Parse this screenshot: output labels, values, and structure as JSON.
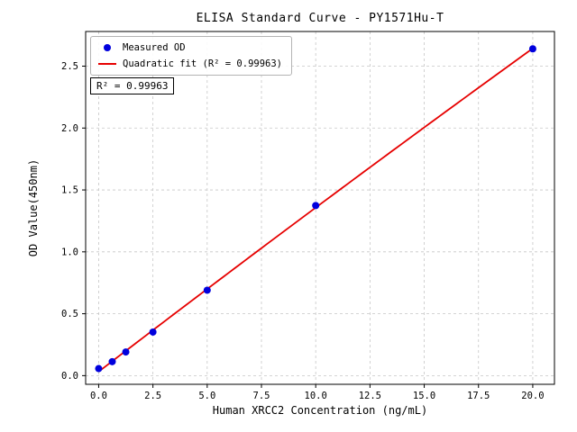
{
  "chart_data": {
    "type": "scatter",
    "title": "ELISA Standard Curve - PY1571Hu-T",
    "xlabel": "Human XRCC2 Concentration (ng/mL)",
    "ylabel": "OD Value(450nm)",
    "annotation": "R² = 0.99963",
    "r_squared": 0.99963,
    "x": [
      0,
      0.625,
      1.25,
      2.5,
      5,
      10,
      20
    ],
    "y": [
      0.057,
      0.113,
      0.191,
      0.352,
      0.69,
      1.374,
      2.64
    ],
    "series": [
      {
        "name": "Measured OD",
        "type": "scatter",
        "color": "#0000dd"
      },
      {
        "name": "Quadratic fit (R² = 0.99963)",
        "type": "quadratic_fit",
        "color": "#e60000"
      }
    ],
    "xlim": [
      -0.6,
      21.0
    ],
    "ylim": [
      -0.07,
      2.78
    ],
    "xticks": [
      0.0,
      2.5,
      5.0,
      7.5,
      10.0,
      12.5,
      15.0,
      17.5,
      20.0
    ],
    "yticks": [
      0.0,
      0.5,
      1.0,
      1.5,
      2.0,
      2.5
    ],
    "grid": true,
    "grid_style": "dashed",
    "legend_position": "upper left"
  }
}
